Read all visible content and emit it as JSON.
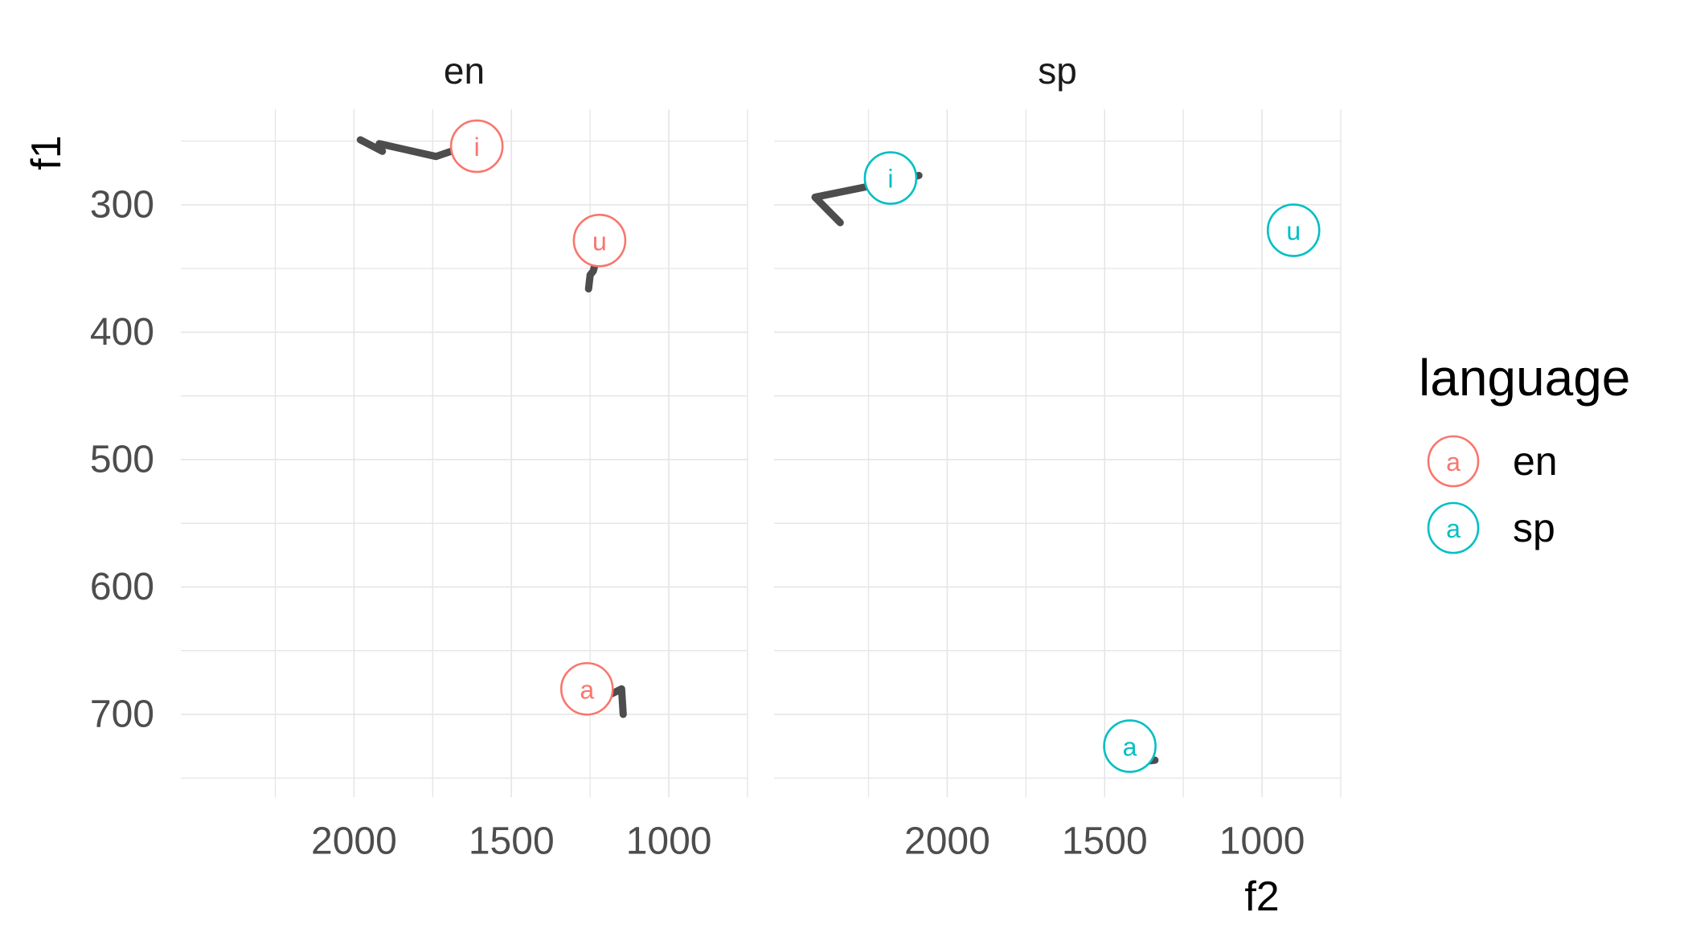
{
  "chart_data": {
    "type": "line",
    "title": "",
    "xlabel": "f2",
    "ylabel": "f1",
    "x_reversed": true,
    "y_reversed": true,
    "xlim": [
      2550,
      750
    ],
    "ylim": [
      225,
      765
    ],
    "x_ticks": [
      2000,
      1500,
      1000
    ],
    "x_tick_labels": [
      "2000",
      "1500",
      "1000"
    ],
    "y_ticks": [
      300,
      400,
      500,
      600,
      700
    ],
    "y_tick_labels": [
      "300",
      "400",
      "500",
      "600",
      "700"
    ],
    "grid": true,
    "trajectory_color": "#4d4d4d",
    "legend": {
      "title": "language",
      "position": "right",
      "key_label": "a",
      "entries": [
        {
          "label": "en",
          "color": "#F8766D"
        },
        {
          "label": "sp",
          "color": "#00BFC4"
        }
      ]
    },
    "facets": [
      {
        "label": "en",
        "color": "#F8766D",
        "vowels": [
          {
            "vowel": "i",
            "f2": 1610,
            "f1": 254
          },
          {
            "vowel": "u",
            "f2": 1220,
            "f1": 328
          },
          {
            "vowel": "a",
            "f2": 1260,
            "f1": 680
          }
        ],
        "trajectories": [
          {
            "vowel": "i",
            "points": [
              [
                1980,
                249
              ],
              [
                1910,
                258
              ],
              [
                1920,
                252
              ],
              [
                1740,
                262
              ],
              [
                1680,
                257
              ],
              [
                1640,
                249
              ]
            ]
          },
          {
            "vowel": "u",
            "points": [
              [
                1225,
                338
              ],
              [
                1240,
                352
              ],
              [
                1250,
                355
              ],
              [
                1255,
                366
              ]
            ]
          },
          {
            "vowel": "a",
            "points": [
              [
                1215,
                688
              ],
              [
                1150,
                680
              ],
              [
                1145,
                700
              ]
            ]
          }
        ]
      },
      {
        "label": "sp",
        "color": "#00BFC4",
        "vowels": [
          {
            "vowel": "i",
            "f2": 2180,
            "f1": 279
          },
          {
            "vowel": "u",
            "f2": 900,
            "f1": 320
          },
          {
            "vowel": "a",
            "f2": 1420,
            "f1": 725
          }
        ],
        "trajectories": [
          {
            "vowel": "i",
            "points": [
              [
                2340,
                314
              ],
              [
                2420,
                294
              ],
              [
                2180,
                282
              ],
              [
                2090,
                277
              ]
            ]
          },
          {
            "vowel": "u",
            "points": [
              [
                890,
                332
              ],
              [
                880,
                334
              ]
            ]
          },
          {
            "vowel": "a",
            "points": [
              [
                1410,
                738
              ],
              [
                1340,
                736
              ]
            ]
          }
        ]
      }
    ]
  }
}
